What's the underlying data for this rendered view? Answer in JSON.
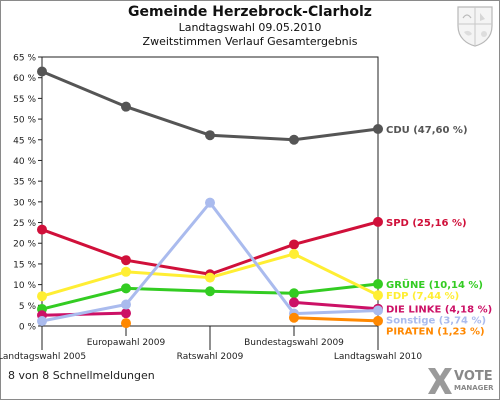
{
  "header": {
    "title": "Gemeinde Herzebrock-Clarholz",
    "subtitle1": "Landtagswahl 09.05.2010",
    "subtitle2": "Zweitstimmen Verlauf Gesamtergebnis"
  },
  "footer": {
    "status": "8 von 8 Schnellmeldungen"
  },
  "logo": {
    "text1": "VOTE",
    "text2": "MANAGER"
  },
  "chart_data": {
    "type": "line",
    "categories": [
      "Landtagswahl 2005",
      "Europawahl 2009",
      "Ratswahl 2009",
      "Bundestagswahl 2009",
      "Landtagswahl 2010"
    ],
    "ylim": [
      0,
      65
    ],
    "yticks": [
      "0 %",
      "5 %",
      "10 %",
      "15 %",
      "20 %",
      "25 %",
      "30 %",
      "35 %",
      "40 %",
      "45 %",
      "50 %",
      "55 %",
      "60 %",
      "65 %"
    ],
    "grid": false,
    "series": [
      {
        "name": "CDU",
        "end_label": "CDU (47,60 %)",
        "color": "#555555",
        "values": [
          61.5,
          53.0,
          46.1,
          45.0,
          47.6
        ]
      },
      {
        "name": "SPD",
        "end_label": "SPD (25,16 %)",
        "color": "#d0103a",
        "values": [
          23.3,
          15.9,
          12.5,
          19.7,
          25.16
        ]
      },
      {
        "name": "GRÜNE",
        "end_label": "GRÜNE (10,14 %)",
        "color": "#33cc22",
        "values": [
          4.1,
          9.1,
          8.4,
          7.9,
          10.14
        ]
      },
      {
        "name": "FDP",
        "end_label": "FDP (7,44 %)",
        "color": "#ffee33",
        "values": [
          7.2,
          13.1,
          11.7,
          17.4,
          7.44
        ]
      },
      {
        "name": "DIE LINKE",
        "end_label": "DIE LINKE (4,18 %)",
        "color": "#cc1166",
        "values": [
          2.6,
          3.1,
          null,
          5.7,
          4.18
        ]
      },
      {
        "name": "Sonstige",
        "end_label": "Sonstige (3,74 %)",
        "color": "#aabbee",
        "values": [
          1.2,
          5.2,
          29.8,
          3.0,
          3.74
        ]
      },
      {
        "name": "PIRATEN",
        "end_label": "PIRATEN (1,23 %)",
        "color": "#ff8800",
        "values": [
          null,
          0.7,
          null,
          2.0,
          1.23
        ]
      }
    ]
  }
}
